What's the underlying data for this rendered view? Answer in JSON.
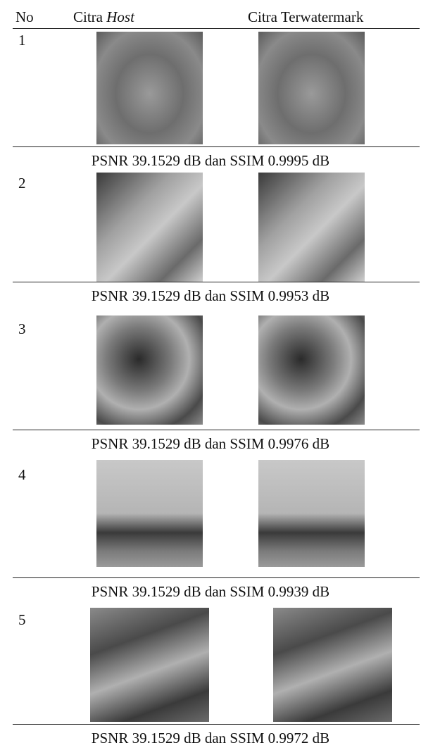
{
  "header": {
    "no": "No",
    "host": {
      "text": "Citra",
      "italic": "Host"
    },
    "watermarked": "Citra Terwatermark"
  },
  "rows": [
    {
      "no": "1",
      "caption": "PSNR 39.1529 dB dan SSIM 0.9995 dB"
    },
    {
      "no": "2",
      "caption": "PSNR 39.1529 dB dan SSIM 0.9953 dB"
    },
    {
      "no": "3",
      "caption": "PSNR 39.1529 dB dan SSIM 0.9976 dB"
    },
    {
      "no": "4",
      "caption": "PSNR 39.1529 dB dan SSIM 0.9939 dB"
    },
    {
      "no": "5",
      "caption": "PSNR 39.1529 dB dan SSIM 0.9972 dB"
    }
  ]
}
